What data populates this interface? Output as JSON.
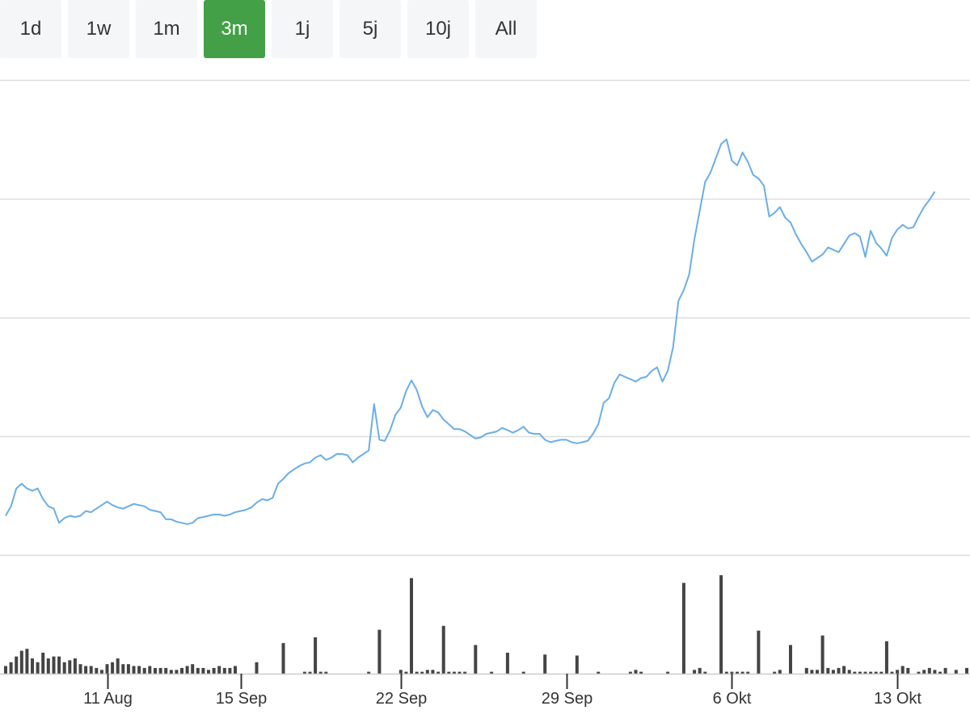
{
  "range_tabs": [
    {
      "label": "1d",
      "active": false
    },
    {
      "label": "1w",
      "active": false
    },
    {
      "label": "1m",
      "active": false
    },
    {
      "label": "3m",
      "active": true
    },
    {
      "label": "1j",
      "active": false
    },
    {
      "label": "5j",
      "active": false
    },
    {
      "label": "10j",
      "active": false
    },
    {
      "label": "All",
      "active": false
    }
  ],
  "colors": {
    "active_tab": "#43a047",
    "price_line": "#6aaee8",
    "volume_bar": "#444444",
    "grid": "#dddddd"
  },
  "chart_data": {
    "type": "line",
    "x_ticks": [
      {
        "label": "11 Aug",
        "x": 19
      },
      {
        "label": "15 Sep",
        "x": 44
      },
      {
        "label": "22 Sep",
        "x": 74
      },
      {
        "label": "29 Sep",
        "x": 105
      },
      {
        "label": "6 Okt",
        "x": 136
      },
      {
        "label": "13 Okt",
        "x": 167
      }
    ],
    "x_range": [
      0,
      180
    ],
    "y_range": [
      0,
      4
    ],
    "y_gridlines": [
      1,
      2,
      3,
      4
    ],
    "ylabel": "",
    "series": [
      {
        "type": "line",
        "values": [
          0.33,
          0.41,
          0.56,
          0.6,
          0.56,
          0.54,
          0.56,
          0.47,
          0.41,
          0.39,
          0.27,
          0.31,
          0.33,
          0.32,
          0.33,
          0.37,
          0.36,
          0.39,
          0.42,
          0.45,
          0.42,
          0.4,
          0.39,
          0.41,
          0.43,
          0.42,
          0.41,
          0.38,
          0.37,
          0.36,
          0.3,
          0.3,
          0.28,
          0.27,
          0.26,
          0.27,
          0.31,
          0.32,
          0.33,
          0.34,
          0.34,
          0.33,
          0.34,
          0.36,
          0.37,
          0.38,
          0.4,
          0.44,
          0.47,
          0.46,
          0.48,
          0.6,
          0.64,
          0.69,
          0.72,
          0.75,
          0.77,
          0.78,
          0.82,
          0.84,
          0.8,
          0.82,
          0.85,
          0.85,
          0.84,
          0.78,
          0.82,
          0.85,
          0.88,
          1.27,
          0.97,
          0.96,
          1.05,
          1.18,
          1.24,
          1.38,
          1.47,
          1.39,
          1.25,
          1.16,
          1.22,
          1.2,
          1.14,
          1.1,
          1.06,
          1.06,
          1.04,
          1.01,
          0.98,
          0.99,
          1.02,
          1.03,
          1.04,
          1.07,
          1.05,
          1.03,
          1.05,
          1.08,
          1.03,
          1.02,
          1.02,
          0.97,
          0.95,
          0.96,
          0.97,
          0.97,
          0.95,
          0.94,
          0.95,
          0.96,
          1.02,
          1.1,
          1.28,
          1.32,
          1.45,
          1.52,
          1.5,
          1.48,
          1.46,
          1.49,
          1.5,
          1.55,
          1.58,
          1.46,
          1.55,
          1.75,
          2.14,
          2.23,
          2.36,
          2.66,
          2.9,
          3.14,
          3.22,
          3.34,
          3.46,
          3.5,
          3.32,
          3.28,
          3.39,
          3.31,
          3.2,
          3.17,
          3.11,
          2.85,
          2.88,
          2.93,
          2.84,
          2.8,
          2.7,
          2.62,
          2.55,
          2.47,
          2.5,
          2.53,
          2.59,
          2.57,
          2.55,
          2.62,
          2.69,
          2.71,
          2.68,
          2.51,
          2.73,
          2.63,
          2.58,
          2.52,
          2.67,
          2.74,
          2.78,
          2.75,
          2.76,
          2.85,
          2.93,
          2.99,
          3.06
        ]
      },
      {
        "type": "volume",
        "values": [
          {
            "x": 0,
            "v": 0.08
          },
          {
            "x": 1,
            "v": 0.12
          },
          {
            "x": 2,
            "v": 0.18
          },
          {
            "x": 3,
            "v": 0.24
          },
          {
            "x": 4,
            "v": 0.26
          },
          {
            "x": 5,
            "v": 0.16
          },
          {
            "x": 6,
            "v": 0.12
          },
          {
            "x": 7,
            "v": 0.22
          },
          {
            "x": 8,
            "v": 0.16
          },
          {
            "x": 9,
            "v": 0.18
          },
          {
            "x": 10,
            "v": 0.18
          },
          {
            "x": 11,
            "v": 0.12
          },
          {
            "x": 12,
            "v": 0.14
          },
          {
            "x": 13,
            "v": 0.16
          },
          {
            "x": 14,
            "v": 0.1
          },
          {
            "x": 15,
            "v": 0.08
          },
          {
            "x": 16,
            "v": 0.08
          },
          {
            "x": 17,
            "v": 0.06
          },
          {
            "x": 18,
            "v": 0.04
          },
          {
            "x": 19,
            "v": 0.1
          },
          {
            "x": 20,
            "v": 0.12
          },
          {
            "x": 21,
            "v": 0.16
          },
          {
            "x": 22,
            "v": 0.1
          },
          {
            "x": 23,
            "v": 0.1
          },
          {
            "x": 24,
            "v": 0.08
          },
          {
            "x": 25,
            "v": 0.08
          },
          {
            "x": 26,
            "v": 0.06
          },
          {
            "x": 27,
            "v": 0.08
          },
          {
            "x": 28,
            "v": 0.06
          },
          {
            "x": 29,
            "v": 0.06
          },
          {
            "x": 30,
            "v": 0.06
          },
          {
            "x": 31,
            "v": 0.04
          },
          {
            "x": 32,
            "v": 0.04
          },
          {
            "x": 33,
            "v": 0.06
          },
          {
            "x": 34,
            "v": 0.08
          },
          {
            "x": 35,
            "v": 0.1
          },
          {
            "x": 36,
            "v": 0.06
          },
          {
            "x": 37,
            "v": 0.06
          },
          {
            "x": 38,
            "v": 0.04
          },
          {
            "x": 39,
            "v": 0.06
          },
          {
            "x": 40,
            "v": 0.08
          },
          {
            "x": 41,
            "v": 0.06
          },
          {
            "x": 42,
            "v": 0.06
          },
          {
            "x": 43,
            "v": 0.08
          },
          {
            "x": 47,
            "v": 0.12
          },
          {
            "x": 52,
            "v": 0.32
          },
          {
            "x": 56,
            "v": 0.02
          },
          {
            "x": 57,
            "v": 0.02
          },
          {
            "x": 58,
            "v": 0.38
          },
          {
            "x": 59,
            "v": 0.02
          },
          {
            "x": 60,
            "v": 0.02
          },
          {
            "x": 68,
            "v": 0.02
          },
          {
            "x": 70,
            "v": 0.46
          },
          {
            "x": 74,
            "v": 0.04
          },
          {
            "x": 75,
            "v": 0.02
          },
          {
            "x": 76,
            "v": 1.0
          },
          {
            "x": 77,
            "v": 0.02
          },
          {
            "x": 78,
            "v": 0.02
          },
          {
            "x": 79,
            "v": 0.04
          },
          {
            "x": 80,
            "v": 0.04
          },
          {
            "x": 81,
            "v": 0.02
          },
          {
            "x": 82,
            "v": 0.5
          },
          {
            "x": 83,
            "v": 0.02
          },
          {
            "x": 84,
            "v": 0.02
          },
          {
            "x": 85,
            "v": 0.02
          },
          {
            "x": 86,
            "v": 0.02
          },
          {
            "x": 88,
            "v": 0.3
          },
          {
            "x": 91,
            "v": 0.02
          },
          {
            "x": 94,
            "v": 0.22
          },
          {
            "x": 97,
            "v": 0.02
          },
          {
            "x": 101,
            "v": 0.2
          },
          {
            "x": 107,
            "v": 0.19
          },
          {
            "x": 111,
            "v": 0.02
          },
          {
            "x": 117,
            "v": 0.02
          },
          {
            "x": 118,
            "v": 0.04
          },
          {
            "x": 119,
            "v": 0.02
          },
          {
            "x": 124,
            "v": 0.02
          },
          {
            "x": 127,
            "v": 0.95
          },
          {
            "x": 129,
            "v": 0.04
          },
          {
            "x": 130,
            "v": 0.06
          },
          {
            "x": 131,
            "v": 0.02
          },
          {
            "x": 134,
            "v": 1.03
          },
          {
            "x": 135,
            "v": 0.02
          },
          {
            "x": 136,
            "v": 0.02
          },
          {
            "x": 137,
            "v": 0.02
          },
          {
            "x": 138,
            "v": 0.02
          },
          {
            "x": 139,
            "v": 0.02
          },
          {
            "x": 141,
            "v": 0.45
          },
          {
            "x": 144,
            "v": 0.02
          },
          {
            "x": 145,
            "v": 0.04
          },
          {
            "x": 147,
            "v": 0.3
          },
          {
            "x": 150,
            "v": 0.06
          },
          {
            "x": 151,
            "v": 0.04
          },
          {
            "x": 152,
            "v": 0.04
          },
          {
            "x": 153,
            "v": 0.4
          },
          {
            "x": 154,
            "v": 0.06
          },
          {
            "x": 155,
            "v": 0.04
          },
          {
            "x": 156,
            "v": 0.06
          },
          {
            "x": 157,
            "v": 0.08
          },
          {
            "x": 158,
            "v": 0.04
          },
          {
            "x": 159,
            "v": 0.02
          },
          {
            "x": 160,
            "v": 0.02
          },
          {
            "x": 161,
            "v": 0.02
          },
          {
            "x": 162,
            "v": 0.02
          },
          {
            "x": 163,
            "v": 0.02
          },
          {
            "x": 164,
            "v": 0.02
          },
          {
            "x": 165,
            "v": 0.34
          },
          {
            "x": 166,
            "v": 0.02
          },
          {
            "x": 167,
            "v": 0.04
          },
          {
            "x": 168,
            "v": 0.08
          },
          {
            "x": 169,
            "v": 0.06
          },
          {
            "x": 171,
            "v": 0.02
          },
          {
            "x": 172,
            "v": 0.04
          },
          {
            "x": 173,
            "v": 0.06
          },
          {
            "x": 174,
            "v": 0.04
          },
          {
            "x": 175,
            "v": 0.02
          },
          {
            "x": 176,
            "v": 0.06
          },
          {
            "x": 178,
            "v": 0.04
          },
          {
            "x": 180,
            "v": 0.06
          }
        ]
      }
    ]
  }
}
